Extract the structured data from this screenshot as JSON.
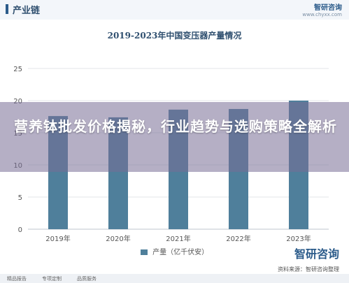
{
  "header": {
    "title": "产业链",
    "brand": "智研咨询",
    "url": "www.chyxx.com"
  },
  "headline": "营养钵批发价格揭秘，行业趋势与选购策略全解析",
  "footer": {
    "logo": "智研咨询",
    "source": "资料来源：智研咨询整理",
    "links": [
      "精品报告",
      "专项定制",
      "品质服务"
    ]
  },
  "colors": {
    "bar": "#4f7f9b",
    "grid": "#e3e6ea",
    "text": "#555555"
  },
  "chart_data": {
    "type": "bar",
    "title": "2019-2023年中国变压器产量情况",
    "categories": [
      "2019年",
      "2020年",
      "2021年",
      "2022年",
      "2023年"
    ],
    "series": [
      {
        "name": "产量（亿千伏安）",
        "values": [
          17.6,
          17.4,
          18.6,
          18.7,
          20.0
        ]
      }
    ],
    "yticks": [
      0,
      5,
      10,
      15,
      20,
      25
    ],
    "ylim": [
      0,
      25
    ],
    "grid": true,
    "legend": "bottom"
  }
}
